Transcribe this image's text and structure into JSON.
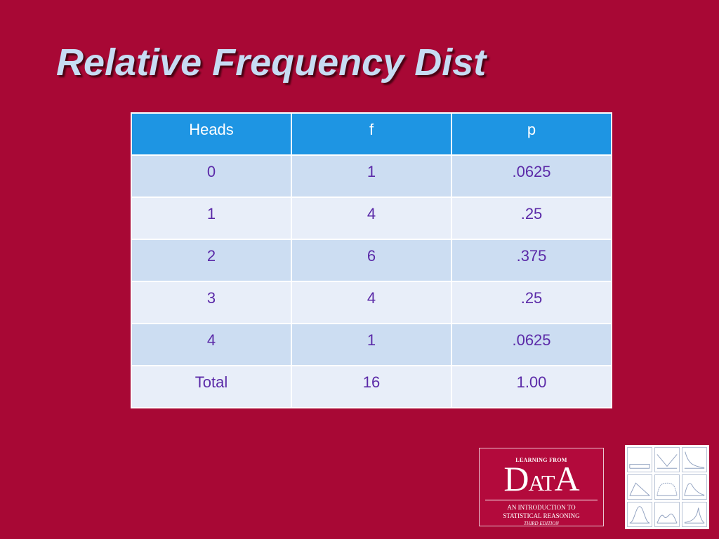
{
  "slide": {
    "title": "Relative Frequency Dist"
  },
  "table": {
    "headers": [
      "Heads",
      "f",
      "p"
    ],
    "rows": [
      [
        "0",
        "1",
        ".0625"
      ],
      [
        "1",
        "4",
        ".25"
      ],
      [
        "2",
        "6",
        ".375"
      ],
      [
        "3",
        "4",
        ".25"
      ],
      [
        "4",
        "1",
        ".0625"
      ],
      [
        "Total",
        "16",
        "1.00"
      ]
    ]
  },
  "logo": {
    "top": "LEARNING FROM",
    "word_big_1": "D",
    "word_small_1": "AT",
    "word_big_2": "A",
    "subtitle_1": "AN INTRODUCTION TO",
    "subtitle_2": "STATISTICAL REASONING",
    "edition": "THIRD EDITION"
  },
  "colors": {
    "background": "#a80835",
    "title": "#c7dcf3",
    "header": "#1e95e3",
    "row_odd": "#ccddf2",
    "row_even": "#e8eef9",
    "cell_text": "#5b2aa8"
  },
  "icons": {
    "plot_grid": "distribution-thumbnails-icon"
  }
}
